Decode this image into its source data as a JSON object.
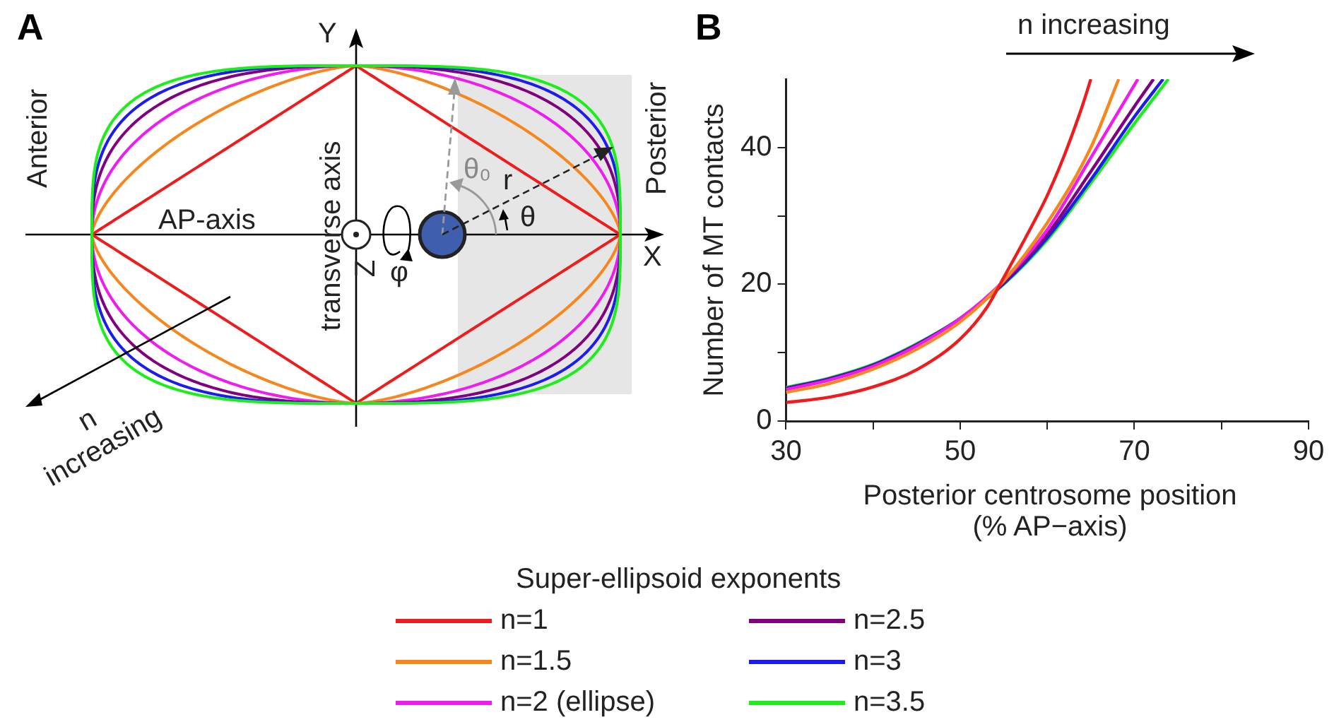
{
  "chart_data": [
    {
      "type": "other",
      "title": "A",
      "annotations": [
        "Y",
        "X",
        "Anterior",
        "Posterior",
        "AP-axis",
        "transverse axis",
        "Z",
        "φ",
        "θ₀",
        "r",
        "θ",
        "n increasing"
      ]
    },
    {
      "type": "line",
      "title": "B",
      "xlabel": "Posterior centrosome position (% AP−axis)",
      "ylabel": "Number of MT contacts",
      "legend_title": "Super-ellipsoid exponents",
      "legend": "bottom",
      "grid": false,
      "marker": "none",
      "line_style": "solid",
      "xlim": [
        30,
        90
      ],
      "xticks": [
        30,
        {
          "value": 40,
          "label": null
        },
        50,
        {
          "value": 60,
          "label": null
        },
        70,
        {
          "value": 80,
          "label": null
        },
        90
      ],
      "ylim": [
        0,
        50
      ],
      "yticks": [
        0,
        {
          "value": 10,
          "label": null
        },
        20,
        {
          "value": 30,
          "label": null
        },
        40
      ],
      "annotations": [
        "n increasing"
      ],
      "series": [
        {
          "name": "n=1",
          "color": "#ee1c1c",
          "x": [
            30,
            35,
            40,
            45,
            50,
            53,
            55,
            58,
            60,
            62,
            64,
            65
          ],
          "values": [
            2.7,
            3.5,
            5,
            7.5,
            12,
            16.5,
            21,
            28,
            33,
            39,
            46,
            50
          ]
        },
        {
          "name": "n=1.5",
          "color": "#f7861c",
          "x": [
            30,
            35,
            40,
            45,
            50,
            55,
            60,
            65,
            68.2
          ],
          "values": [
            4.2,
            5.5,
            7.6,
            10.5,
            14.5,
            20.5,
            29,
            40,
            50
          ]
        },
        {
          "name": "n=2 (ellipse)",
          "color": "#ee1cee",
          "x": [
            30,
            35,
            40,
            45,
            50,
            55,
            60,
            65,
            70.4
          ],
          "values": [
            4.6,
            6,
            8,
            11,
            15,
            20.5,
            28,
            38.5,
            50
          ]
        },
        {
          "name": "n=2.5",
          "color": "#800080",
          "x": [
            30,
            35,
            40,
            45,
            50,
            55,
            60,
            65,
            70,
            72.2
          ],
          "values": [
            4.7,
            6.1,
            8.1,
            11.1,
            15,
            20.3,
            27.3,
            36.5,
            46,
            50
          ]
        },
        {
          "name": "n=3",
          "color": "#1c1cee",
          "x": [
            30,
            35,
            40,
            45,
            50,
            55,
            60,
            65,
            70,
            73.3
          ],
          "values": [
            4.8,
            6.2,
            8.2,
            11.2,
            15,
            20.1,
            26.8,
            35.3,
            44.5,
            50
          ]
        },
        {
          "name": "n=3.5",
          "color": "#1cee1c",
          "x": [
            30,
            35,
            40,
            45,
            50,
            55,
            60,
            65,
            70,
            73.9
          ],
          "values": [
            4.9,
            6.3,
            8.3,
            11.3,
            15,
            20,
            26.5,
            34.8,
            43.5,
            50
          ]
        }
      ]
    }
  ]
}
